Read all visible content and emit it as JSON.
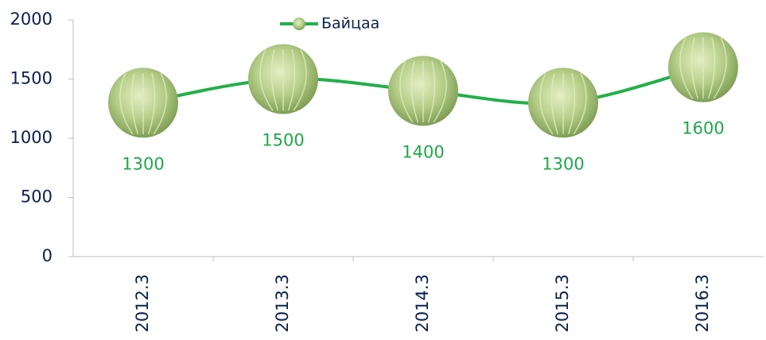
{
  "chart_data": {
    "type": "line",
    "categories": [
      "2012.3",
      "2013.3",
      "2014.3",
      "2015.3",
      "2016.3"
    ],
    "series": [
      {
        "name": "Байцаа",
        "color": "#22b04b",
        "values": [
          1300,
          1500,
          1400,
          1300,
          1600
        ]
      }
    ],
    "ylim": [
      0,
      2000
    ],
    "yticks": [
      0,
      500,
      1000,
      1500,
      2000
    ],
    "legend": "top",
    "smooth": true,
    "grid": false
  }
}
